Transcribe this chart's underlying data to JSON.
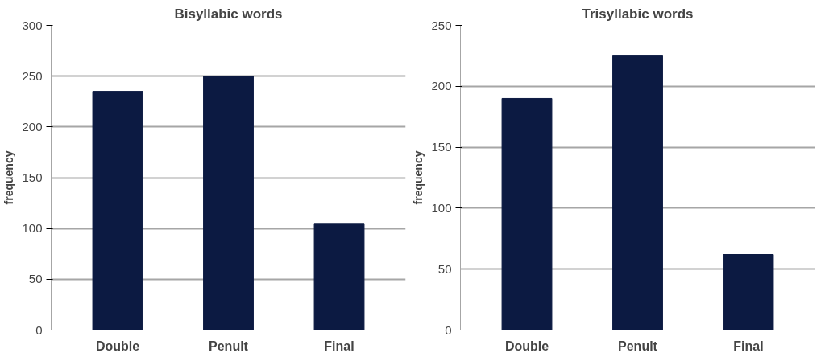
{
  "chart_data": [
    {
      "type": "bar",
      "title": "Bisyllabic words",
      "ylabel": "frequency",
      "categories": [
        "Double",
        "Penult",
        "Final"
      ],
      "values": [
        235,
        250,
        105
      ],
      "color": "#0c1a42",
      "ylim": [
        0,
        300
      ],
      "yticks": [
        0,
        50,
        100,
        150,
        200,
        250,
        300
      ],
      "grid": "y"
    },
    {
      "type": "bar",
      "title": "Trisyllabic words",
      "ylabel": "frequency",
      "categories": [
        "Double",
        "Penult",
        "Final"
      ],
      "values": [
        190,
        225,
        62
      ],
      "color": "#0c1a42",
      "ylim": [
        0,
        250
      ],
      "yticks": [
        0,
        50,
        100,
        150,
        200,
        250
      ],
      "grid": "y"
    }
  ]
}
